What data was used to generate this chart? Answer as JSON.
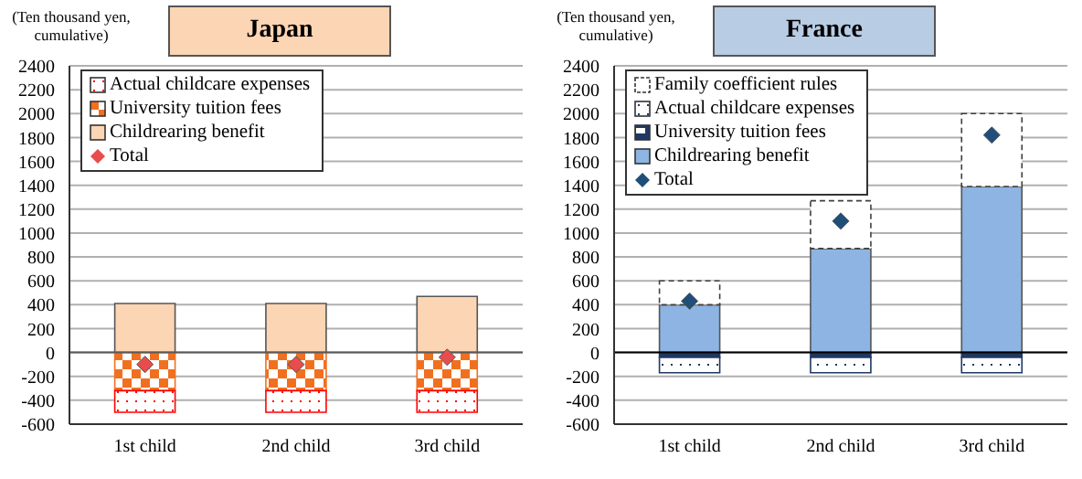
{
  "chart_data": [
    {
      "type": "bar",
      "title": "Japan",
      "ylabel": "(Ten thousand yen, cumulative)",
      "categories": [
        "1st child",
        "2nd child",
        "3rd child"
      ],
      "stacked": true,
      "ylim": [
        -600,
        2400
      ],
      "yticks": [
        -600,
        -400,
        -200,
        0,
        200,
        400,
        600,
        800,
        1000,
        1200,
        1400,
        1600,
        1800,
        2000,
        2200,
        2400
      ],
      "grid": "y",
      "legend": "top left",
      "ref_lines": [
        {
          "axis": "y",
          "value": 0,
          "color": "#595959"
        }
      ],
      "series": [
        {
          "name": "Childrearing benefit",
          "type": "bar",
          "color": "#fcd5b4",
          "values": [
            410,
            410,
            470
          ]
        },
        {
          "name": "University tuition fees",
          "type": "bar",
          "color": "#f07020",
          "values": [
            -320,
            -320,
            -320
          ]
        },
        {
          "name": "Actual childcare expenses",
          "type": "bar",
          "color": "#ff0000",
          "values": [
            -180,
            -180,
            -180
          ]
        },
        {
          "name": "Total",
          "type": "scatter",
          "marker": "diamond",
          "color": "#e84c4c",
          "values": [
            -100,
            -100,
            -40
          ]
        }
      ]
    },
    {
      "type": "bar",
      "title": "France",
      "ylabel": "(Ten thousand yen, cumulative)",
      "categories": [
        "1st child",
        "2nd child",
        "3rd child"
      ],
      "stacked": true,
      "ylim": [
        -600,
        2400
      ],
      "yticks": [
        -600,
        -400,
        -200,
        0,
        200,
        400,
        600,
        800,
        1000,
        1200,
        1400,
        1600,
        1800,
        2000,
        2200,
        2400
      ],
      "grid": "y",
      "legend": "top left",
      "ref_lines": [
        {
          "axis": "y",
          "value": 0,
          "color": "#000000"
        }
      ],
      "series": [
        {
          "name": "Childrearing benefit",
          "type": "bar",
          "color": "#8db4e2",
          "values": [
            400,
            870,
            1390
          ]
        },
        {
          "name": "University tuition fees",
          "type": "bar",
          "color": "#1f3864",
          "values": [
            -40,
            -40,
            -40
          ]
        },
        {
          "name": "Actual childcare expenses",
          "type": "bar",
          "color": "#1f3864",
          "values": [
            -130,
            -130,
            -130
          ]
        },
        {
          "name": "Family coefficient rules",
          "type": "bar",
          "color": "#404040",
          "line_style": "dashed",
          "values": [
            200,
            400,
            610
          ]
        },
        {
          "name": "Total",
          "type": "scatter",
          "marker": "diamond",
          "color": "#1f4e79",
          "values": [
            430,
            1100,
            1820
          ]
        }
      ]
    }
  ]
}
